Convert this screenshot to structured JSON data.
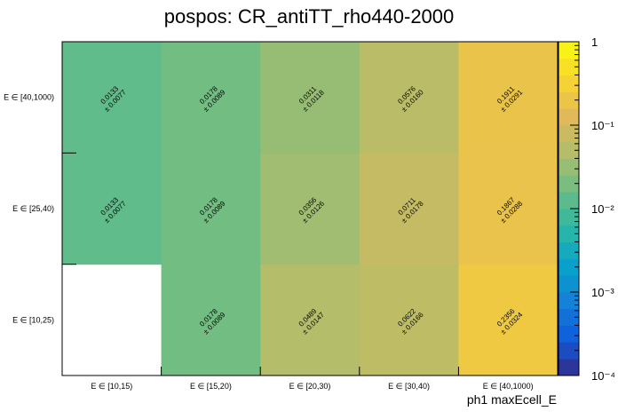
{
  "chart_data": {
    "type": "heatmap",
    "title": "pospos: CR_antiTT_rho440-2000",
    "xlabel": "ph1 maxEcell_E",
    "ylabel": "",
    "x_categories": [
      "E ∈ [10,15)",
      "E ∈ [15,20)",
      "E ∈ [20,30)",
      "E ∈ [30,40)",
      "E ∈ [40,1000)"
    ],
    "y_categories": [
      "E ∈ [10,25)",
      "E ∈ [25,40)",
      "E ∈ [40,1000)"
    ],
    "z_scale": "log",
    "z_range": [
      0.0001,
      1
    ],
    "z_ticks": [
      {
        "value": 1,
        "label": "1"
      },
      {
        "value": 0.1,
        "label": "10⁻¹"
      },
      {
        "value": 0.01,
        "label": "10⁻²"
      },
      {
        "value": 0.001,
        "label": "10⁻³"
      },
      {
        "value": 0.0001,
        "label": "10⁻⁴"
      }
    ],
    "cells": [
      {
        "xi": 1,
        "yi": 0,
        "value": 0.0178,
        "value_label": "0.0178",
        "error_label": "± 0.0089"
      },
      {
        "xi": 2,
        "yi": 0,
        "value": 0.0489,
        "value_label": "0.0489",
        "error_label": "± 0.0147"
      },
      {
        "xi": 3,
        "yi": 0,
        "value": 0.0622,
        "value_label": "0.0622",
        "error_label": "± 0.0166"
      },
      {
        "xi": 4,
        "yi": 0,
        "value": 0.2356,
        "value_label": "0.2356",
        "error_label": "± 0.0324"
      },
      {
        "xi": 0,
        "yi": 1,
        "value": 0.0133,
        "value_label": "0.0133",
        "error_label": "± 0.0077"
      },
      {
        "xi": 1,
        "yi": 1,
        "value": 0.0178,
        "value_label": "0.0178",
        "error_label": "± 0.0089"
      },
      {
        "xi": 2,
        "yi": 1,
        "value": 0.0356,
        "value_label": "0.0356",
        "error_label": "± 0.0126"
      },
      {
        "xi": 3,
        "yi": 1,
        "value": 0.0711,
        "value_label": "0.0711",
        "error_label": "± 0.0178"
      },
      {
        "xi": 4,
        "yi": 1,
        "value": 0.1867,
        "value_label": "0.1867",
        "error_label": "± 0.0288"
      },
      {
        "xi": 0,
        "yi": 2,
        "value": 0.0133,
        "value_label": "0.0133",
        "error_label": "± 0.0077"
      },
      {
        "xi": 1,
        "yi": 2,
        "value": 0.0178,
        "value_label": "0.0178",
        "error_label": "± 0.0089"
      },
      {
        "xi": 2,
        "yi": 2,
        "value": 0.0311,
        "value_label": "0.0311",
        "error_label": "± 0.0118"
      },
      {
        "xi": 3,
        "yi": 2,
        "value": 0.0576,
        "value_label": "0.0576",
        "error_label": "± 0.0160"
      },
      {
        "xi": 4,
        "yi": 2,
        "value": 0.1911,
        "value_label": "0.1911",
        "error_label": "± 0.0291"
      }
    ],
    "palette": [
      "#352a87",
      "#0f5cdd",
      "#1481d6",
      "#06a4ca",
      "#2eb7a4",
      "#6ebd83",
      "#b1bd6b",
      "#e1b95a",
      "#f8d530",
      "#f9fb0e"
    ],
    "grid": false,
    "legend": "colorbar-right"
  }
}
